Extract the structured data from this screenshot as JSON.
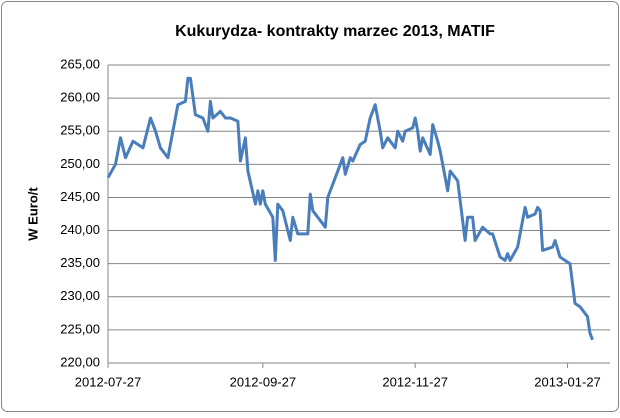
{
  "chart_data": {
    "type": "line",
    "title": "Kukurydza- kontrakty marzec 2013, MATIF",
    "y_label": "W Euro/t",
    "x": [
      "2012-07-27",
      "2012-07-30",
      "2012-08-01",
      "2012-08-03",
      "2012-08-06",
      "2012-08-08",
      "2012-08-10",
      "2012-08-13",
      "2012-08-15",
      "2012-08-17",
      "2012-08-20",
      "2012-08-22",
      "2012-08-24",
      "2012-08-27",
      "2012-08-28",
      "2012-08-29",
      "2012-08-31",
      "2012-09-03",
      "2012-09-05",
      "2012-09-06",
      "2012-09-07",
      "2012-09-10",
      "2012-09-12",
      "2012-09-14",
      "2012-09-17",
      "2012-09-18",
      "2012-09-20",
      "2012-09-21",
      "2012-09-24",
      "2012-09-25",
      "2012-09-26",
      "2012-09-27",
      "2012-09-28",
      "2012-10-01",
      "2012-10-02",
      "2012-10-03",
      "2012-10-05",
      "2012-10-08",
      "2012-10-09",
      "2012-10-11",
      "2012-10-15",
      "2012-10-16",
      "2012-10-17",
      "2012-10-19",
      "2012-10-22",
      "2012-10-23",
      "2012-10-26",
      "2012-10-29",
      "2012-10-30",
      "2012-11-01",
      "2012-11-02",
      "2012-11-05",
      "2012-11-07",
      "2012-11-09",
      "2012-11-11",
      "2012-11-13",
      "2012-11-14",
      "2012-11-16",
      "2012-11-19",
      "2012-11-20",
      "2012-11-22",
      "2012-11-23",
      "2012-11-26",
      "2012-11-27",
      "2012-11-28",
      "2012-11-29",
      "2012-11-30",
      "2012-12-03",
      "2012-12-04",
      "2012-12-06",
      "2012-12-07",
      "2012-12-10",
      "2012-12-11",
      "2012-12-14",
      "2012-12-17",
      "2012-12-18",
      "2012-12-20",
      "2012-12-21",
      "2012-12-24",
      "2012-12-27",
      "2012-12-28",
      "2012-12-31",
      "2013-01-02",
      "2013-01-03",
      "2013-01-04",
      "2013-01-07",
      "2013-01-10",
      "2013-01-11",
      "2013-01-14",
      "2013-01-15",
      "2013-01-16",
      "2013-01-17",
      "2013-01-21",
      "2013-01-22",
      "2013-01-24",
      "2013-01-28",
      "2013-01-29",
      "2013-01-30",
      "2013-02-01",
      "2013-02-04",
      "2013-02-05",
      "2013-02-06"
    ],
    "series": [
      {
        "name": "MATIF",
        "color": "#4a7ebb",
        "values": [
          248,
          250,
          254,
          251,
          253.5,
          253,
          252.5,
          257,
          255,
          252.5,
          251,
          255,
          259,
          259.5,
          263,
          263,
          257.5,
          257,
          255,
          259.5,
          257,
          258,
          257,
          257,
          256.5,
          250.5,
          254,
          249,
          244,
          246,
          244,
          246,
          244,
          242,
          235.5,
          244,
          243,
          238.5,
          242,
          239.5,
          239.5,
          245.5,
          243,
          242,
          240.5,
          245,
          248,
          251,
          248.5,
          251,
          250.5,
          253,
          253.5,
          257,
          259,
          255,
          252.5,
          254,
          252.5,
          255,
          253.5,
          255,
          255.5,
          257,
          255,
          252,
          254,
          251.5,
          256,
          253.5,
          252,
          246,
          249,
          247.5,
          238.5,
          242,
          242,
          238.5,
          240.5,
          239.5,
          239.5,
          236,
          235.5,
          236.5,
          235.5,
          237.5,
          243.5,
          242,
          242.5,
          243.5,
          243,
          237,
          237.5,
          238.5,
          236,
          235,
          232,
          229,
          228.5,
          227,
          224.5,
          223.5
        ]
      }
    ],
    "xlim": [
      "2012-07-27",
      "2013-02-13"
    ],
    "xticks": [
      "2012-07-27",
      "2012-09-27",
      "2012-11-27",
      "2013-01-27"
    ],
    "ylim": [
      220,
      265
    ],
    "yticks": [
      {
        "value": 220,
        "label": "220,00"
      },
      {
        "value": 225,
        "label": "225,00"
      },
      {
        "value": 230,
        "label": "230,00"
      },
      {
        "value": 235,
        "label": "235,00"
      },
      {
        "value": 240,
        "label": "240,00"
      },
      {
        "value": 245,
        "label": "245,00"
      },
      {
        "value": 250,
        "label": "250,00"
      },
      {
        "value": 255,
        "label": "255,00"
      },
      {
        "value": 260,
        "label": "260,00"
      },
      {
        "value": 265,
        "label": "265,00"
      }
    ],
    "grid": true
  }
}
